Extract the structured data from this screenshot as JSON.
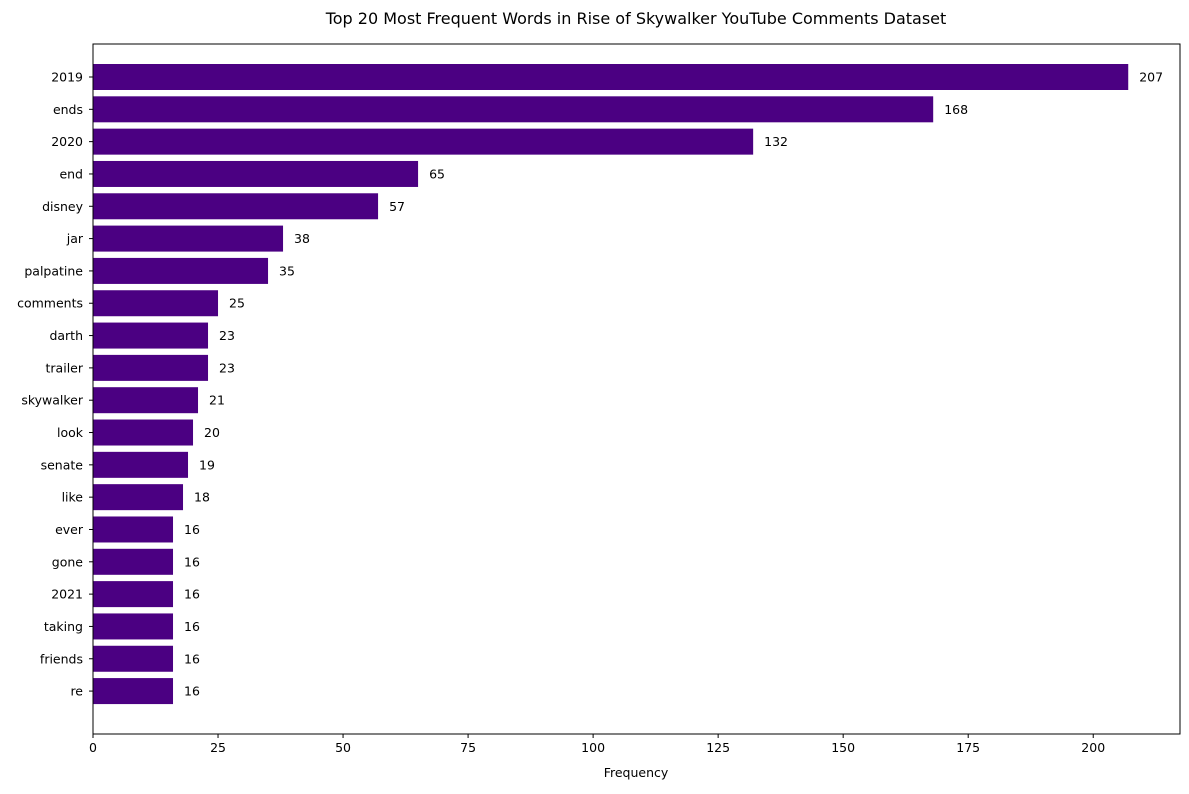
{
  "chart_data": {
    "type": "bar",
    "orientation": "horizontal",
    "title": "Top 20 Most Frequent Words in Rise of Skywalker YouTube Comments Dataset",
    "xlabel": "Frequency",
    "ylabel": "",
    "categories": [
      "2019",
      "ends",
      "2020",
      "end",
      "disney",
      "jar",
      "palpatine",
      "comments",
      "darth",
      "trailer",
      "skywalker",
      "look",
      "senate",
      "like",
      "ever",
      "gone",
      "2021",
      "taking",
      "friends",
      "re"
    ],
    "values": [
      207,
      168,
      132,
      65,
      57,
      38,
      35,
      25,
      23,
      23,
      21,
      20,
      19,
      18,
      16,
      16,
      16,
      16,
      16,
      16
    ],
    "xlim": [
      0,
      217.35
    ],
    "xticks": [
      0,
      25,
      50,
      75,
      100,
      125,
      150,
      175,
      200
    ],
    "grid": false,
    "data_labels": true,
    "bar_color": "#4B0082"
  }
}
